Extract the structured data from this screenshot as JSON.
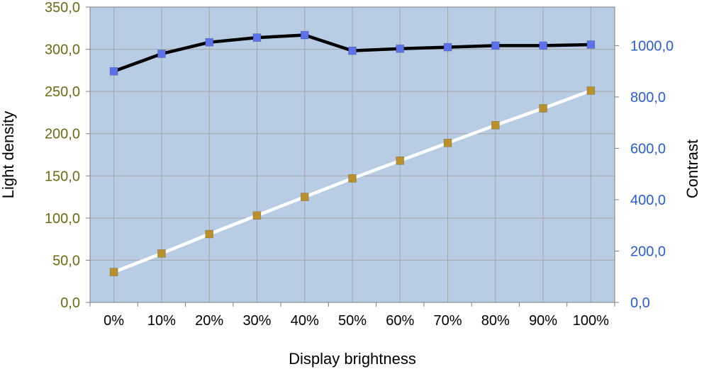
{
  "colors": {
    "plot_background": "#b8cce4",
    "grid": "#a6a6a6",
    "left_axis_text": "#6b6b14",
    "right_axis_text": "#2a5cd6",
    "contrast_line": "#000000",
    "contrast_marker": "#5b72ea",
    "density_line": "#ffffff",
    "density_marker": "#b8902c"
  },
  "chart_data": {
    "type": "line",
    "x_axis_title": "Display brightness",
    "left_axis_title": "Light density",
    "right_axis_title": "Contrast",
    "categories": [
      "0%",
      "10%",
      "20%",
      "30%",
      "40%",
      "50%",
      "60%",
      "70%",
      "80%",
      "90%",
      "100%"
    ],
    "left_axis": {
      "range": [
        0,
        350
      ],
      "tick_labels": [
        "0,0",
        "50,0",
        "100,0",
        "150,0",
        "200,0",
        "250,0",
        "300,0",
        "350,0"
      ]
    },
    "right_axis": {
      "range": [
        0,
        1150
      ],
      "tick_labels": [
        "0,0",
        "200,0",
        "400,0",
        "600,0",
        "800,0",
        "1000,0"
      ]
    },
    "series": [
      {
        "axis": "right",
        "line": "black",
        "marker": "blue square",
        "values": [
          900,
          968,
          1013,
          1031,
          1041,
          980,
          988,
          994,
          1000,
          1000,
          1004
        ]
      },
      {
        "axis": "left",
        "line": "white",
        "marker": "gold square",
        "values": [
          36,
          58,
          81,
          103,
          125,
          147,
          168,
          189,
          210,
          230,
          251
        ]
      }
    ],
    "grid": "vertical lines at categories, horizontal lines at left-axis ticks",
    "legend": "none"
  }
}
